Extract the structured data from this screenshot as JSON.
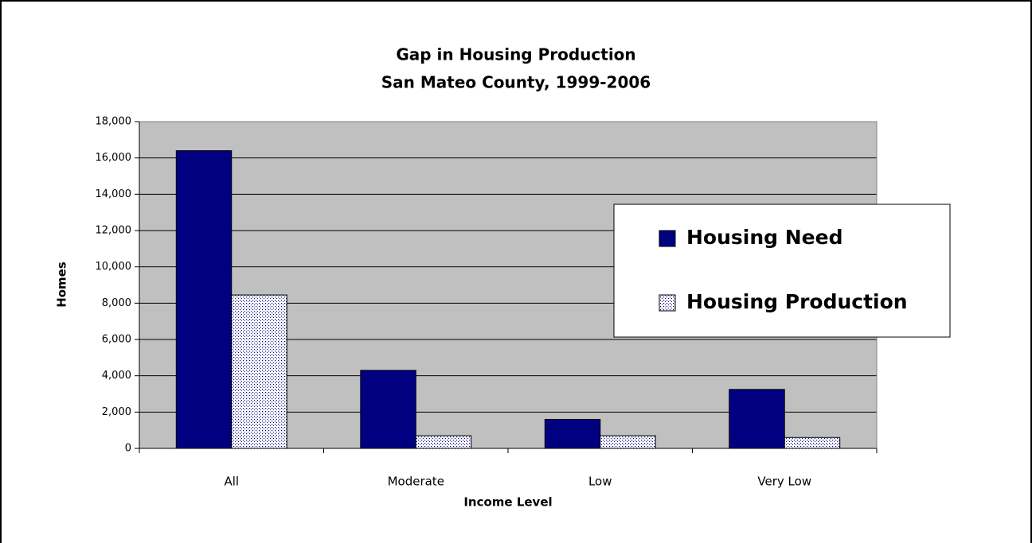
{
  "chart_data": {
    "type": "bar",
    "title": [
      "Gap in Housing Production",
      "San Mateo County, 1999-2006"
    ],
    "xlabel": "Income Level",
    "ylabel": "Homes",
    "categories": [
      "All",
      "Moderate",
      "Low",
      "Very Low"
    ],
    "series": [
      {
        "name": "Housing Need",
        "color": "#000080",
        "pattern": "solid",
        "values": [
          16400,
          4300,
          1600,
          3250
        ]
      },
      {
        "name": "Housing Production",
        "color": "#000080",
        "pattern": "dots",
        "values": [
          8450,
          700,
          700,
          600
        ]
      }
    ],
    "ylim": [
      0,
      18000
    ],
    "yticks": [
      0,
      {
        "value": 2000,
        "label": "2,000"
      },
      {
        "value": 4000,
        "label": "4,000"
      },
      {
        "value": 6000,
        "label": "6,000"
      },
      {
        "value": 8000,
        "label": "8,000"
      },
      {
        "value": 10000,
        "label": "10,000"
      },
      {
        "value": 12000,
        "label": "12,000"
      },
      {
        "value": 14000,
        "label": "14,000"
      },
      {
        "value": 16000,
        "label": "16,000"
      },
      {
        "value": 18000,
        "label": "18,000"
      }
    ],
    "grid": true,
    "background": "#c0c0c0"
  }
}
